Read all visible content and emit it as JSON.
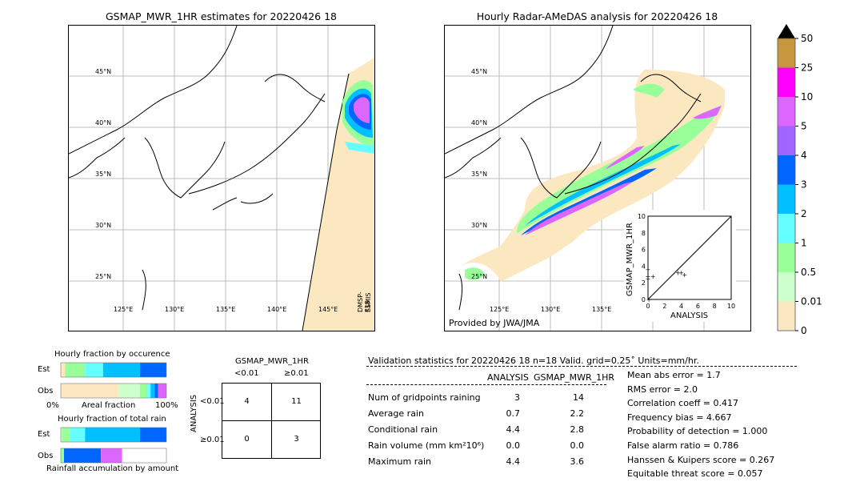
{
  "left_map": {
    "title": "GSMAP_MWR_1HR estimates for 20220426 18",
    "lat_labels": [
      "45°N",
      "40°N",
      "35°N",
      "30°N",
      "25°N"
    ],
    "lon_labels": [
      "125°E",
      "130°E",
      "135°E",
      "140°E",
      "145°E"
    ],
    "sensor_label_1": "DMSP-F18",
    "sensor_label_2": "SSMIS"
  },
  "right_map": {
    "title": "Hourly Radar-AMeDAS analysis for 20220426 18",
    "lat_labels": [
      "45°N",
      "40°N",
      "35°N",
      "30°N",
      "25°N"
    ],
    "lon_labels": [
      "125°E",
      "130°E",
      "135°E"
    ],
    "provider": "Provided by JWA/JMA"
  },
  "colorbar": {
    "levels": [
      "50",
      "25",
      "10",
      "5",
      "4",
      "3",
      "2",
      "1",
      "0.5",
      "0.01",
      "0"
    ],
    "colors": [
      "#c8963c",
      "#ff00ff",
      "#dd66ff",
      "#a066ff",
      "#0066ff",
      "#00c0ff",
      "#66ffff",
      "#99ff99",
      "#ccffcc",
      "#fce8c0"
    ],
    "over_color": "#000000"
  },
  "chart_data": [
    {
      "type": "scatter",
      "title": "",
      "xlabel": "ANALYSIS",
      "ylabel": "GSMAP_MWR_1HR",
      "xlim": [
        0,
        10
      ],
      "ylim": [
        0,
        10
      ],
      "x_ticks": [
        "0",
        "2",
        "4",
        "6",
        "8",
        "10"
      ],
      "y_ticks": [
        "0",
        "2",
        "4",
        "6",
        "8",
        "10"
      ],
      "points": [
        [
          0.0,
          3.6
        ],
        [
          0.0,
          2.8
        ],
        [
          0.0,
          2.5
        ],
        [
          0.6,
          2.8
        ],
        [
          3.6,
          3.2
        ],
        [
          4.4,
          3.0
        ],
        [
          4.0,
          3.2
        ],
        [
          0.1,
          0.0
        ]
      ],
      "diagonal": true
    },
    {
      "type": "bar",
      "title": "Hourly fraction by occurence",
      "categories": [
        "Est",
        "Obs"
      ],
      "series": [
        {
          "color": "#fce8c0",
          "values": [
            0.04,
            0.55
          ]
        },
        {
          "color": "#ccffcc",
          "values": [
            0.0,
            0.2
          ]
        },
        {
          "color": "#99ff99",
          "values": [
            0.19,
            0.07
          ]
        },
        {
          "color": "#66ffff",
          "values": [
            0.17,
            0.03
          ]
        },
        {
          "color": "#00c0ff",
          "values": [
            0.35,
            0.04
          ]
        },
        {
          "color": "#0066ff",
          "values": [
            0.25,
            0.03
          ]
        },
        {
          "color": "#dd66ff",
          "values": [
            0.0,
            0.08
          ]
        }
      ],
      "xlabel": "Areal fraction",
      "x_ticks": [
        "0%",
        "100%"
      ]
    },
    {
      "type": "bar",
      "title": "Hourly fraction of total rain",
      "categories": [
        "Est",
        "Obs"
      ],
      "series": [
        {
          "color": "#ccffcc",
          "values": [
            0.01,
            0.0
          ]
        },
        {
          "color": "#99ff99",
          "values": [
            0.08,
            0.03
          ]
        },
        {
          "color": "#66ffff",
          "values": [
            0.14,
            0.0
          ]
        },
        {
          "color": "#00c0ff",
          "values": [
            0.52,
            0.0
          ]
        },
        {
          "color": "#0066ff",
          "values": [
            0.25,
            0.35
          ]
        },
        {
          "color": "#a066ff",
          "values": [
            0.0,
            0.0
          ]
        },
        {
          "color": "#dd66ff",
          "values": [
            0.0,
            0.2
          ]
        }
      ],
      "xlabel": "Rainfall accumulation by amount"
    }
  ],
  "contingency": {
    "title": "GSMAP_MWR_1HR",
    "col_lt": "<0.01",
    "col_ge": "≥0.01",
    "row_axis": "ANALYSIS",
    "row_lt": "<0.01",
    "row_ge": "≥0.01",
    "cells": [
      "4",
      "11",
      "0",
      "3"
    ]
  },
  "validation": {
    "header": "Validation statistics for 20220426 18  n=18 Valid. grid=0.25˚ Units=mm/hr.",
    "col_analysis": "ANALYSIS",
    "col_gsmap": "GSMAP_MWR_1HR",
    "rows": [
      {
        "label": "Num of gridpoints raining",
        "a": "3",
        "g": "14"
      },
      {
        "label": "Average rain",
        "a": "0.7",
        "g": "2.2"
      },
      {
        "label": "Conditional rain",
        "a": "4.4",
        "g": "2.8"
      },
      {
        "label": "Rain volume (mm km²10⁶)",
        "a": "0.0",
        "g": "0.0"
      },
      {
        "label": "Maximum rain",
        "a": "4.4",
        "g": "3.6"
      }
    ],
    "scores": [
      "Mean abs error =    1.7",
      "RMS error =    2.0",
      "Correlation coeff =  0.417",
      "Frequency bias =  4.667",
      "Probability of detection =  1.000",
      "False alarm ratio =  0.786",
      "Hanssen & Kuipers score =  0.267",
      "Equitable threat score =  0.057"
    ]
  }
}
